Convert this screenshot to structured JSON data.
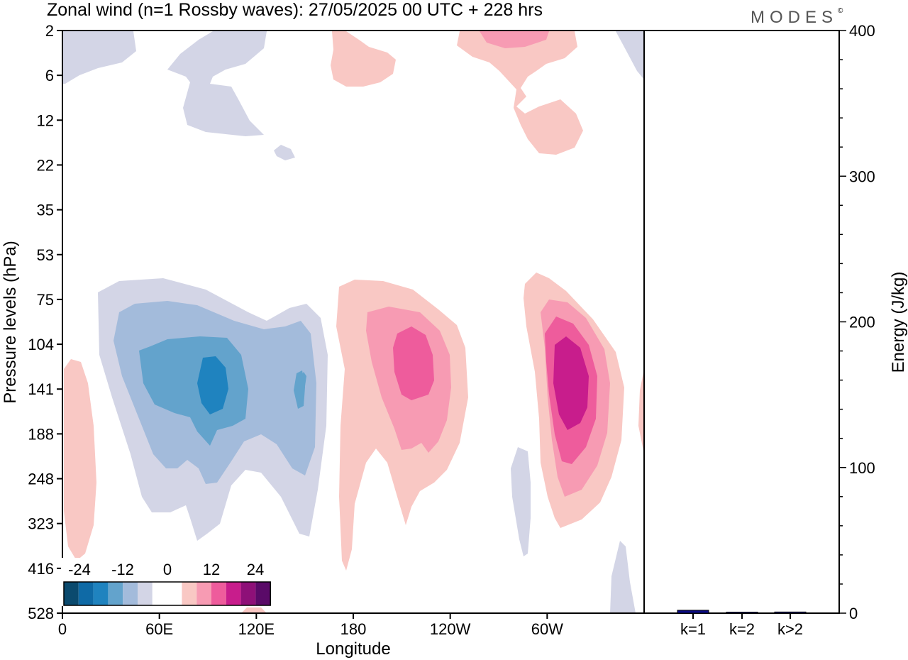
{
  "header": {
    "title": "Zonal wind (n=1 Rossby waves):  27/05/2025  00 UTC  + 228 hrs",
    "logo": "MODES",
    "logo_mark": "©"
  },
  "colors": {
    "neg": [
      "#0b4a6e",
      "#0f6aa6",
      "#1f83bf",
      "#63a3cc",
      "#a3bbdb",
      "#d3d5e6"
    ],
    "zero": "#ffffff",
    "pos": [
      "#f9c8c4",
      "#f79bb3",
      "#ee5c9c",
      "#c81d8c",
      "#8e1078",
      "#5a0a68"
    ],
    "bar": "#0a0a82"
  },
  "chart_data": [
    {
      "type": "heatmap",
      "title": "Zonal wind (n=1 Rossby waves):  27/05/2025  00 UTC  + 228 hrs",
      "xlabel": "Longitude",
      "ylabel": "Pressure levels (hPa)",
      "x_ticks": [
        "0",
        "60E",
        "120E",
        "180",
        "120W",
        "60W"
      ],
      "x_tick_values": [
        0,
        60,
        120,
        180,
        240,
        300
      ],
      "xlim": [
        0,
        360
      ],
      "y_ticks": [
        "2",
        "6",
        "12",
        "22",
        "35",
        "53",
        "75",
        "104",
        "141",
        "188",
        "248",
        "323",
        "416",
        "528"
      ],
      "y_scale": "pressure levels (top 2 hPa, bottom 528 hPa)",
      "colorbar": {
        "tick_labels": [
          "-24",
          "-12",
          "0",
          "12",
          "24"
        ],
        "levels": [
          -30,
          -25,
          -20,
          -15,
          -10,
          -5,
          0,
          5,
          10,
          15,
          20,
          25,
          30
        ]
      },
      "features": [
        {
          "sign": "negative",
          "lon": 90,
          "level": "141",
          "peak": -20
        },
        {
          "sign": "negative",
          "lon": 146,
          "level": "141",
          "peak": -15
        },
        {
          "sign": "positive",
          "lon": 210,
          "level": "141",
          "peak": 15
        },
        {
          "sign": "positive",
          "lon": 308,
          "level": "141",
          "peak": 20
        },
        {
          "sign": "positive",
          "lon": 12,
          "level": "248",
          "peak": 5
        },
        {
          "sign": "negative",
          "lon": 286,
          "level": "248",
          "peak": -5
        },
        {
          "sign": "positive",
          "lon": 195,
          "level": "6",
          "peak": 5
        },
        {
          "sign": "positive",
          "lon": 280,
          "level": "2",
          "peak": 10
        },
        {
          "sign": "negative",
          "lon": 40,
          "level": "6",
          "peak": -5
        }
      ]
    },
    {
      "type": "bar",
      "categories": [
        "k=1",
        "k=2",
        "k>2"
      ],
      "values": [
        2,
        0.3,
        0.8
      ],
      "ylabel": "Energy (J/kg)",
      "ylim": [
        0,
        400
      ],
      "y_ticks": [
        "0",
        "100",
        "200",
        "300",
        "400"
      ]
    }
  ]
}
